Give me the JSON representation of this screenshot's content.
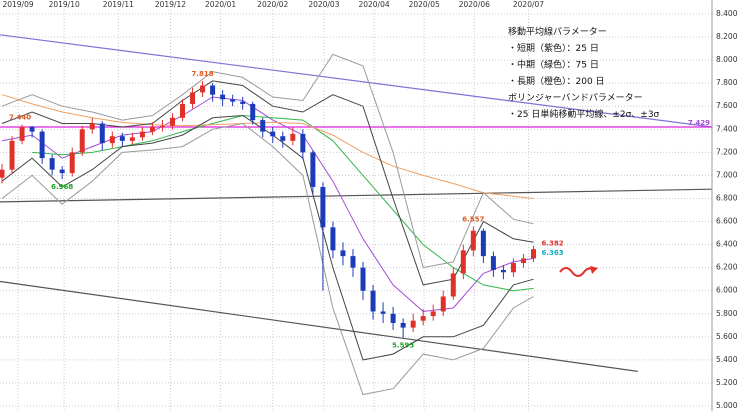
{
  "chart_data": {
    "type": "candlestick",
    "xlim": [
      -0.2,
      70.8
    ],
    "xticks": [
      {
        "value": 1.6,
        "label": "2019/09"
      },
      {
        "value": 6.2,
        "label": "2019/10"
      },
      {
        "value": 11.6,
        "label": "2019/11"
      },
      {
        "value": 16.8,
        "label": "2019/12"
      },
      {
        "value": 21.8,
        "label": "2020/01"
      },
      {
        "value": 27,
        "label": "2020/02"
      },
      {
        "value": 32.1,
        "label": "2020/03"
      },
      {
        "value": 37.1,
        "label": "2020/04"
      },
      {
        "value": 42.1,
        "label": "2020/05"
      },
      {
        "value": 47.1,
        "label": "2020/06"
      },
      {
        "value": 52.5,
        "label": "2020/07"
      }
    ],
    "ylim": [
      5.0,
      8.4
    ],
    "yticks": [
      {
        "value": 8.4,
        "label": "8.400"
      },
      {
        "value": 8.2,
        "label": "8.200"
      },
      {
        "value": 8.0,
        "label": "8.000"
      },
      {
        "value": 7.8,
        "label": "7.800"
      },
      {
        "value": 7.6,
        "label": "7.600"
      },
      {
        "value": 7.4,
        "label": "7.400"
      },
      {
        "value": 7.2,
        "label": "7.200"
      },
      {
        "value": 7.0,
        "label": "7.000"
      },
      {
        "value": 6.8,
        "label": "6.800"
      },
      {
        "value": 6.6,
        "label": "6.600"
      },
      {
        "value": 6.4,
        "label": "6.400"
      },
      {
        "value": 6.2,
        "label": "6.200"
      },
      {
        "value": 6.0,
        "label": "6.000"
      },
      {
        "value": 5.8,
        "label": "5.800"
      },
      {
        "value": 5.6,
        "label": "5.600"
      },
      {
        "value": 5.4,
        "label": "5.400"
      },
      {
        "value": 5.2,
        "label": "5.200"
      },
      {
        "value": 5.0,
        "label": "5.000"
      }
    ],
    "grid": true,
    "up_color": "#e0302a",
    "down_color": "#1c3bb8",
    "x": [
      0,
      1,
      2,
      3,
      4,
      5,
      6,
      7,
      8,
      9,
      10,
      11,
      12,
      13,
      14,
      15,
      16,
      17,
      18,
      19,
      20,
      21,
      22,
      23,
      24,
      25,
      26,
      27,
      28,
      29,
      30,
      31,
      32,
      33,
      34,
      35,
      36,
      37,
      38,
      39,
      40,
      41,
      42,
      43,
      44,
      45,
      46,
      47,
      48,
      49,
      50,
      51,
      52,
      53
    ],
    "open": [
      6.98,
      7.05,
      7.3,
      7.42,
      7.38,
      7.15,
      7.05,
      7.02,
      7.2,
      7.4,
      7.45,
      7.28,
      7.34,
      7.3,
      7.33,
      7.38,
      7.42,
      7.43,
      7.5,
      7.62,
      7.72,
      7.78,
      7.7,
      7.66,
      7.64,
      7.62,
      7.48,
      7.38,
      7.34,
      7.3,
      7.36,
      7.2,
      6.9,
      6.55,
      6.35,
      6.3,
      6.2,
      6.0,
      5.82,
      5.8,
      5.72,
      5.68,
      5.74,
      5.78,
      5.82,
      5.95,
      6.15,
      6.35,
      6.52,
      6.3,
      6.18,
      6.16,
      6.24,
      6.28
    ],
    "high": [
      7.1,
      7.34,
      7.44,
      7.43,
      7.4,
      7.18,
      7.08,
      7.24,
      7.43,
      7.5,
      7.47,
      7.38,
      7.37,
      7.37,
      7.42,
      7.46,
      7.48,
      7.54,
      7.66,
      7.76,
      7.818,
      7.8,
      7.74,
      7.7,
      7.68,
      7.64,
      7.5,
      7.42,
      7.38,
      7.42,
      7.4,
      7.22,
      6.94,
      6.6,
      6.42,
      6.36,
      6.25,
      6.05,
      5.9,
      5.86,
      5.76,
      5.8,
      5.84,
      5.88,
      6.0,
      6.2,
      6.4,
      6.557,
      6.54,
      6.34,
      6.22,
      6.28,
      6.32,
      6.39
    ],
    "low": [
      6.93,
      7.02,
      7.27,
      7.33,
      7.1,
      7.0,
      6.968,
      6.99,
      7.17,
      7.36,
      7.22,
      7.24,
      7.25,
      7.27,
      7.3,
      7.35,
      7.38,
      7.4,
      7.47,
      7.58,
      7.68,
      7.64,
      7.6,
      7.6,
      7.57,
      7.44,
      7.33,
      7.28,
      7.24,
      7.26,
      7.14,
      6.84,
      6.0,
      6.28,
      6.22,
      6.12,
      5.92,
      5.75,
      5.72,
      5.66,
      5.593,
      5.64,
      5.7,
      5.74,
      5.78,
      5.92,
      6.1,
      6.3,
      6.24,
      6.12,
      6.1,
      6.12,
      6.2,
      6.25
    ],
    "close": [
      7.05,
      7.3,
      7.42,
      7.38,
      7.15,
      7.05,
      7.02,
      7.2,
      7.4,
      7.45,
      7.28,
      7.34,
      7.3,
      7.33,
      7.38,
      7.42,
      7.43,
      7.5,
      7.62,
      7.72,
      7.78,
      7.7,
      7.66,
      7.64,
      7.62,
      7.48,
      7.38,
      7.34,
      7.3,
      7.36,
      7.2,
      6.9,
      6.55,
      6.35,
      6.3,
      6.2,
      6.0,
      5.82,
      5.8,
      5.72,
      5.68,
      5.74,
      5.78,
      5.82,
      5.95,
      6.15,
      6.35,
      6.52,
      6.3,
      6.18,
      6.16,
      6.24,
      6.28,
      6.36
    ],
    "line_x": [
      0,
      3,
      6,
      9,
      12,
      15,
      18,
      21,
      24,
      27,
      30,
      33,
      36,
      39,
      42,
      45,
      48,
      51,
      53
    ],
    "lines": [
      {
        "color": "#a64ad6",
        "width": 1,
        "values": [
          7.3,
          7.35,
          7.15,
          7.25,
          7.35,
          7.38,
          7.52,
          7.68,
          7.65,
          7.48,
          7.35,
          6.95,
          6.45,
          6.05,
          5.82,
          5.85,
          6.15,
          6.25,
          6.28
        ]
      },
      {
        "color": "#35b54a",
        "width": 1,
        "values": [
          null,
          7.2,
          7.18,
          7.2,
          7.25,
          7.3,
          7.38,
          7.45,
          7.52,
          7.5,
          7.48,
          7.3,
          7.0,
          6.7,
          6.4,
          6.2,
          6.05,
          6.0,
          6.02
        ]
      },
      {
        "color": "#f0a060",
        "width": 1,
        "values": [
          7.7,
          7.62,
          7.55,
          7.5,
          7.46,
          7.44,
          7.43,
          7.44,
          7.45,
          7.46,
          7.45,
          7.35,
          7.2,
          7.08,
          7.0,
          6.93,
          6.85,
          6.82,
          6.8
        ]
      },
      {
        "color": "#444444",
        "width": 1,
        "values": [
          7.45,
          7.55,
          7.45,
          7.45,
          7.42,
          7.45,
          7.65,
          7.82,
          7.78,
          7.6,
          7.55,
          7.7,
          7.6,
          6.8,
          6.05,
          6.1,
          6.6,
          6.45,
          6.42
        ]
      },
      {
        "color": "#444444",
        "width": 1,
        "values": [
          6.95,
          7.15,
          6.9,
          7.05,
          7.25,
          7.28,
          7.35,
          7.5,
          7.52,
          7.35,
          7.15,
          6.2,
          5.4,
          5.45,
          5.6,
          5.6,
          5.7,
          6.05,
          6.1
        ]
      },
      {
        "color": "#9a9a9a",
        "width": 1,
        "values": [
          7.6,
          7.7,
          7.6,
          7.55,
          7.48,
          7.52,
          7.7,
          7.9,
          7.85,
          7.68,
          7.65,
          8.05,
          7.95,
          7.2,
          6.2,
          6.25,
          6.85,
          6.62,
          6.58
        ]
      },
      {
        "color": "#9a9a9a",
        "width": 1,
        "values": [
          6.8,
          7.0,
          6.75,
          6.95,
          7.2,
          7.22,
          7.25,
          7.4,
          7.45,
          7.25,
          7.0,
          5.85,
          5.1,
          5.15,
          5.45,
          5.4,
          5.5,
          5.85,
          5.95
        ]
      }
    ],
    "trendlines": [
      {
        "color": "#7b74d6",
        "x": [
          -0.2,
          70.8
        ],
        "values": [
          8.22,
          7.42
        ]
      },
      {
        "color": "#e020e0",
        "x": [
          -0.2,
          70.8
        ],
        "values": [
          7.42,
          7.42
        ]
      },
      {
        "color": "#555555",
        "x": [
          -0.2,
          70.8
        ],
        "values": [
          6.77,
          6.88
        ]
      },
      {
        "color": "#555555",
        "x": [
          -0.2,
          63.4
        ],
        "values": [
          6.08,
          5.3
        ]
      }
    ],
    "annotations": [
      {
        "text": "7.440",
        "x": 1.8,
        "y": 7.44,
        "place": "above",
        "color": "#e05a20"
      },
      {
        "text": "7.818",
        "x": 20,
        "y": 7.818,
        "place": "above",
        "color": "#e05a20"
      },
      {
        "text": "6.968",
        "x": 6,
        "y": 6.968,
        "place": "below",
        "color": "#1fa02a"
      },
      {
        "text": "5.593",
        "x": 40,
        "y": 5.593,
        "place": "below",
        "color": "#1fa02a"
      },
      {
        "text": "6.557",
        "x": 47,
        "y": 6.557,
        "place": "above",
        "color": "#e05a20"
      },
      {
        "text": "6.382",
        "x": 53.6,
        "y": 6.382,
        "place": "right-up",
        "color": "#e0302a"
      },
      {
        "text": "6.363",
        "x": 53.6,
        "y": 6.363,
        "place": "right-down",
        "color": "#17a7c8"
      },
      {
        "text": "7.429",
        "x": 70.6,
        "y": 7.429,
        "place": "left-up",
        "color": "#a64ad6"
      }
    ],
    "notes": [
      "移動平均線パラメーター",
      "・短期（紫色）：25 日",
      "・中期（緑色）：75 日",
      "・長期（橙色）：200 日",
      "ボリンジャーバンドパラメーター",
      "・25 日単純移動平均線、±2σ、±3σ"
    ]
  }
}
